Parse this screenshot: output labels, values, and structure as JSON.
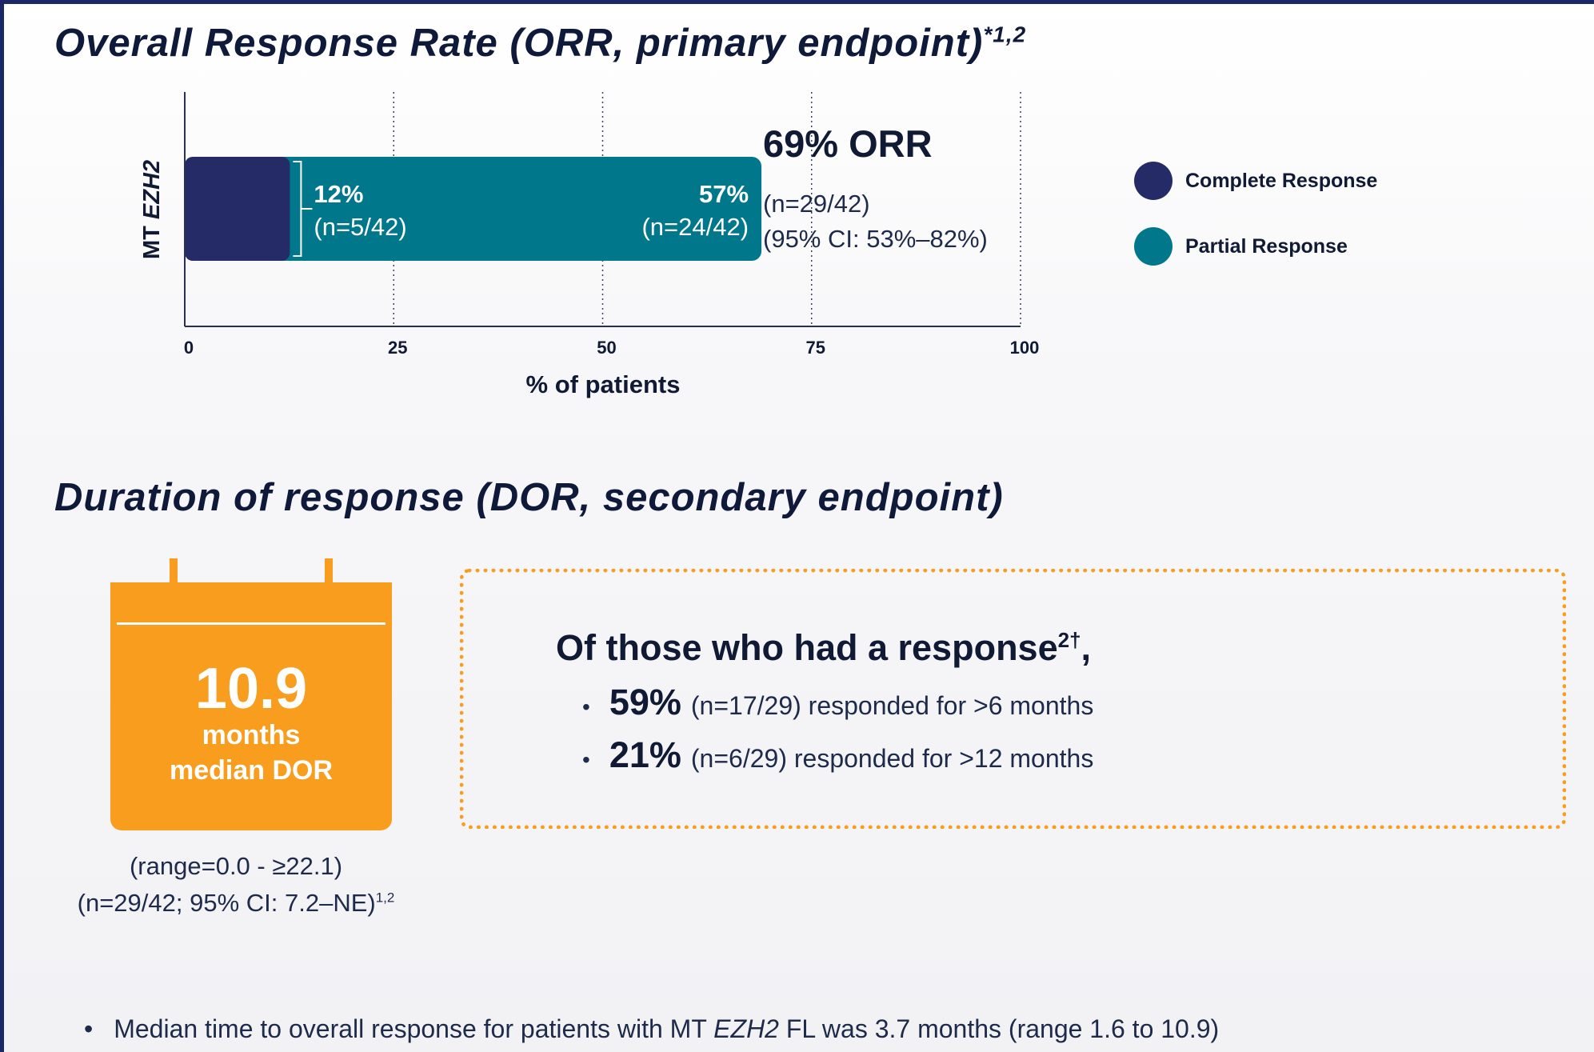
{
  "section1": {
    "title": "Overall Response Rate (ORR, primary endpoint)",
    "title_sup": "*1,2"
  },
  "chart_data": {
    "type": "bar",
    "orientation": "horizontal",
    "stacked": true,
    "categories": [
      "MT EZH2"
    ],
    "series": [
      {
        "name": "Complete Response",
        "values": [
          12
        ],
        "color": "#242b66"
      },
      {
        "name": "Partial Response",
        "values": [
          57
        ],
        "color": "#00778a"
      }
    ],
    "labels": [
      {
        "pct": "12%",
        "n": "(n=5/42)"
      },
      {
        "pct": "57%",
        "n": "(n=24/42)"
      }
    ],
    "xlabel": "% of patients",
    "xlim": [
      0,
      100
    ],
    "xticks": [
      "0",
      "25",
      "50",
      "75",
      "100"
    ],
    "grid": "vertical dotted",
    "legend": "right"
  },
  "orr": {
    "headline": "69% ORR",
    "n": "(n=29/42)",
    "ci": "(95% CI: 53%–82%)"
  },
  "legend": [
    {
      "label": "Complete Response",
      "color": "#242b66"
    },
    {
      "label": "Partial Response",
      "color": "#00778a"
    }
  ],
  "section2": {
    "title": "Duration of response (DOR, secondary endpoint)"
  },
  "dor": {
    "value": "10.9",
    "unit": "months",
    "label": "median DOR",
    "range": "(range=0.0 - ≥22.1)",
    "n_ci": "(n=29/42; 95% CI: 7.2–NE)",
    "n_ci_sup": "1,2"
  },
  "responders": {
    "heading": "Of those who had a response",
    "heading_sup": "2†",
    "heading_end": ",",
    "items": [
      {
        "pct": "59%",
        "detail": "(n=17/29) responded for >6 months"
      },
      {
        "pct": "21%",
        "detail": "(n=6/29) responded for >12 months"
      }
    ]
  },
  "footnote": {
    "bullet": "•",
    "before": "Median time to overall response for patients with MT ",
    "gene": "EZH2",
    "after": " FL was 3.7 months (range 1.6 to 10.9)"
  },
  "colors": {
    "navy": "#242b66",
    "teal": "#00778a",
    "orange": "#f89d1e",
    "text": "#101a35"
  }
}
